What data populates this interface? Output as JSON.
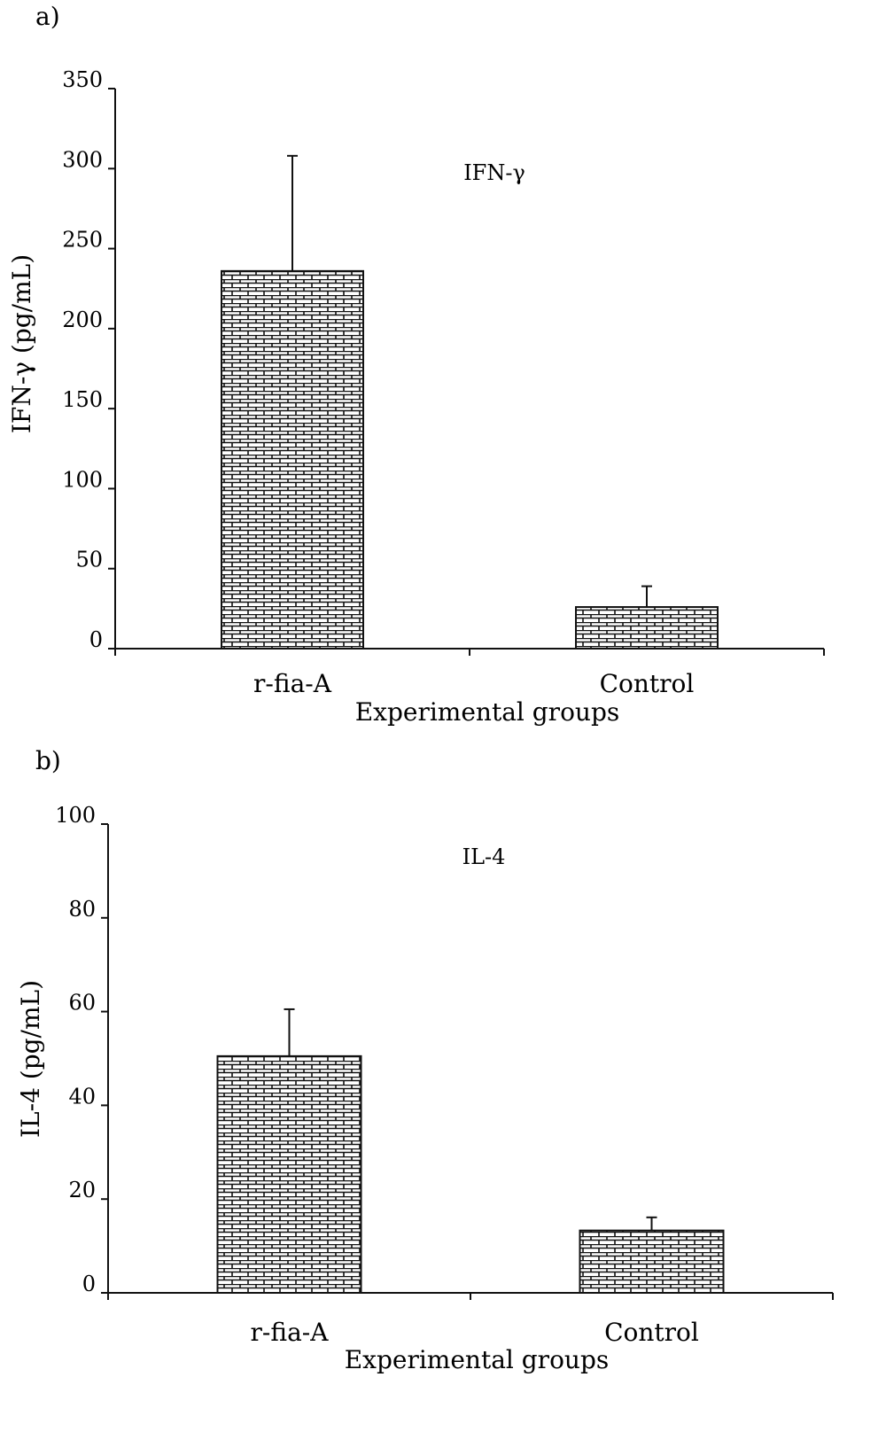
{
  "chart_data": [
    {
      "type": "bar",
      "panel_label": "a)",
      "title": "IFN-γ",
      "xlabel": "Experimental groups",
      "ylabel": "IFN-γ (pg/mL)",
      "categories": [
        "r-fia-A",
        "Control"
      ],
      "values": [
        236,
        26
      ],
      "error": [
        72,
        13
      ],
      "ylim": [
        0,
        350
      ],
      "yticks": [
        "0",
        "50",
        "100",
        "150",
        "200",
        "250",
        "300",
        "350"
      ],
      "grid": false,
      "bar_fill": "brick-hatch",
      "colors": {
        "bar_fill": "#ffffff",
        "stroke": "#111111"
      }
    },
    {
      "type": "bar",
      "panel_label": "b)",
      "title": "IL-4",
      "xlabel": "Experimental groups",
      "ylabel": "IL-4 (pg/mL)",
      "categories": [
        "r-fia-A",
        "Control"
      ],
      "values": [
        50.5,
        13.3
      ],
      "error": [
        10,
        2.8
      ],
      "ylim": [
        0,
        100
      ],
      "yticks": [
        "0",
        "20",
        "40",
        "60",
        "80",
        "100"
      ],
      "grid": false,
      "bar_fill": "brick-hatch",
      "colors": {
        "bar_fill": "#ffffff",
        "stroke": "#111111"
      }
    }
  ]
}
